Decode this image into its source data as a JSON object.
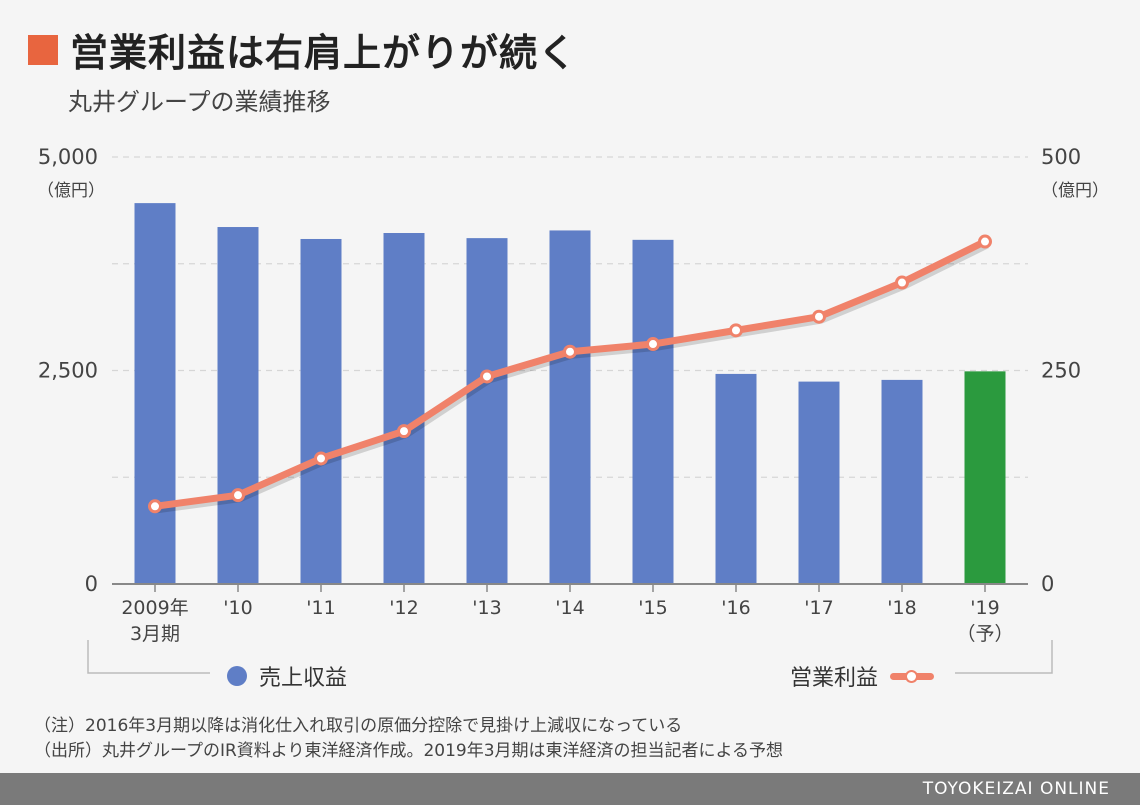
{
  "title": "営業利益は右肩上がりが続く",
  "subtitle": "丸井グループの業績推移",
  "colors": {
    "title_square": "#e8653f",
    "bar": "#5f7ec6",
    "bar_forecast": "#2b9a3e",
    "line": "#f0826a",
    "grid": "#d6d6d6",
    "axis": "#888888"
  },
  "chart_data": {
    "type": "bar",
    "categories": [
      "2009年\n3月期",
      "'10",
      "'11",
      "'12",
      "'13",
      "'14",
      "'15",
      "'16",
      "'17",
      "'18",
      "'19\n（予）"
    ],
    "series": [
      {
        "name": "売上収益",
        "type": "bar",
        "axis": "left",
        "values": [
          4460,
          4180,
          4040,
          4110,
          4050,
          4140,
          4030,
          2460,
          2370,
          2390,
          2490
        ]
      },
      {
        "name": "営業利益",
        "type": "line",
        "axis": "right",
        "values": [
          91,
          104,
          147,
          179,
          243,
          272,
          281,
          297,
          313,
          353,
          401
        ]
      }
    ],
    "left_axis": {
      "ylim": [
        0,
        5000
      ],
      "ticks": [
        "0",
        "2,500",
        "5,000"
      ],
      "unit": "（億円）"
    },
    "right_axis": {
      "ylim": [
        0,
        500
      ],
      "ticks": [
        "0",
        "250",
        "500"
      ],
      "unit": "（億円）"
    },
    "forecast_index": 10,
    "grid": true,
    "legend_position": "bottom"
  },
  "notes": [
    "（注）2016年3月期以降は消化仕入れ取引の原価分控除で見掛け上減収になっている",
    "（出所）丸井グループのIR資料より東洋経済作成。2019年3月期は東洋経済の担当記者による予想"
  ],
  "footer": "TOYOKEIZAI ONLINE"
}
